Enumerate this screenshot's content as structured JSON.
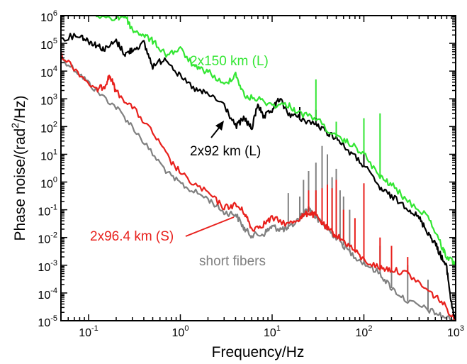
{
  "chart_data": {
    "type": "line",
    "xscale": "log",
    "yscale": "log",
    "xlim": [
      0.05,
      1000
    ],
    "ylim": [
      1e-05,
      1000000.0
    ],
    "grid": false,
    "xlabel": "Frequency/Hz",
    "ylabel_prefix": "Phase noise/(rad",
    "ylabel_sup": "2",
    "ylabel_suffix": "/Hz)",
    "x_ticks": [
      {
        "base": "10",
        "exp": "-1",
        "value": 0.1
      },
      {
        "base": "10",
        "exp": "0",
        "value": 1
      },
      {
        "base": "10",
        "exp": "1",
        "value": 10
      },
      {
        "base": "10",
        "exp": "2",
        "value": 100
      },
      {
        "base": "10",
        "exp": "3",
        "value": 1000
      }
    ],
    "y_ticks": [
      {
        "base": "10",
        "exp": "-5",
        "value": 1e-05
      },
      {
        "base": "10",
        "exp": "-4",
        "value": 0.0001
      },
      {
        "base": "10",
        "exp": "-3",
        "value": 0.001
      },
      {
        "base": "10",
        "exp": "-2",
        "value": 0.01
      },
      {
        "base": "10",
        "exp": "-1",
        "value": 0.1
      },
      {
        "base": "10",
        "exp": "0",
        "value": 1
      },
      {
        "base": "10",
        "exp": "1",
        "value": 10
      },
      {
        "base": "10",
        "exp": "2",
        "value": 100
      },
      {
        "base": "10",
        "exp": "3",
        "value": 1000
      },
      {
        "base": "10",
        "exp": "4",
        "value": 10000
      },
      {
        "base": "10",
        "exp": "5",
        "value": 100000
      },
      {
        "base": "10",
        "exp": "6",
        "value": 1000000
      }
    ],
    "series": [
      {
        "key": "short",
        "name": "short fibers",
        "color": "#808080",
        "points": [
          [
            0.05,
            30000
          ],
          [
            0.08,
            8000
          ],
          [
            0.12,
            2000
          ],
          [
            0.2,
            500
          ],
          [
            0.3,
            100
          ],
          [
            0.5,
            10
          ],
          [
            0.8,
            1.5
          ],
          [
            1.2,
            0.6
          ],
          [
            2,
            0.25
          ],
          [
            3,
            0.08
          ],
          [
            4,
            0.07
          ],
          [
            5,
            0.02
          ],
          [
            6,
            0.012
          ],
          [
            8,
            0.013
          ],
          [
            10,
            0.025
          ],
          [
            12,
            0.02
          ],
          [
            15,
            0.02
          ],
          [
            20,
            0.05
          ],
          [
            25,
            0.12
          ],
          [
            30,
            0.05
          ],
          [
            40,
            0.02
          ],
          [
            50,
            0.01
          ],
          [
            70,
            0.003
          ],
          [
            100,
            0.0012
          ],
          [
            150,
            0.0005
          ],
          [
            200,
            0.00015
          ],
          [
            300,
            5e-05
          ],
          [
            500,
            2.5e-05
          ],
          [
            700,
            1.5e-05
          ],
          [
            1000,
            1e-05
          ]
        ],
        "spikes": [
          [
            15,
            0.4
          ],
          [
            20,
            0.3
          ],
          [
            22,
            1.2
          ],
          [
            25,
            2.5
          ],
          [
            30,
            5
          ],
          [
            35,
            20
          ],
          [
            40,
            10
          ],
          [
            45,
            1.5
          ],
          [
            50,
            3
          ],
          [
            55,
            0.5
          ],
          [
            60,
            0.3
          ],
          [
            70,
            0.1
          ],
          [
            100,
            0.3
          ],
          [
            150,
            0.005
          ],
          [
            200,
            0.002
          ],
          [
            300,
            0.001
          ],
          [
            500,
            0.0003
          ]
        ]
      },
      {
        "key": "red",
        "name": "2x96.4 km (S)",
        "color": "#e8201c",
        "points": [
          [
            0.05,
            40000
          ],
          [
            0.08,
            8000
          ],
          [
            0.12,
            2000
          ],
          [
            0.15,
            3000
          ],
          [
            0.17,
            7000
          ],
          [
            0.2,
            1800
          ],
          [
            0.3,
            500
          ],
          [
            0.5,
            60
          ],
          [
            0.8,
            5
          ],
          [
            1.2,
            1.2
          ],
          [
            2,
            0.4
          ],
          [
            3,
            0.12
          ],
          [
            4,
            0.15
          ],
          [
            5,
            0.08
          ],
          [
            6,
            0.02
          ],
          [
            8,
            0.03
          ],
          [
            10,
            0.05
          ],
          [
            15,
            0.03
          ],
          [
            20,
            0.05
          ],
          [
            25,
            0.08
          ],
          [
            30,
            0.06
          ],
          [
            40,
            0.02
          ],
          [
            50,
            0.012
          ],
          [
            70,
            0.005
          ],
          [
            100,
            0.0015
          ],
          [
            150,
            0.0008
          ],
          [
            200,
            0.0007
          ],
          [
            300,
            0.0005
          ],
          [
            500,
            0.00012
          ],
          [
            700,
            5e-05
          ],
          [
            1000,
            1e-05
          ]
        ],
        "spikes": [
          [
            25,
            0.5
          ],
          [
            30,
            0.5
          ],
          [
            35,
            0.6
          ],
          [
            40,
            0.8
          ],
          [
            45,
            0.6
          ],
          [
            50,
            1.2
          ],
          [
            60,
            0.1
          ],
          [
            80,
            0.05
          ],
          [
            100,
            0.9
          ],
          [
            150,
            0.01
          ],
          [
            200,
            0.005
          ],
          [
            300,
            0.002
          ]
        ]
      },
      {
        "key": "black",
        "name": "2x92 km (L)",
        "color": "#000000",
        "points": [
          [
            0.05,
            150000
          ],
          [
            0.08,
            200000
          ],
          [
            0.1,
            120000
          ],
          [
            0.12,
            90000
          ],
          [
            0.15,
            60000
          ],
          [
            0.2,
            120000
          ],
          [
            0.25,
            40000
          ],
          [
            0.3,
            60000
          ],
          [
            0.4,
            100000
          ],
          [
            0.5,
            15000
          ],
          [
            0.7,
            30000
          ],
          [
            1,
            6000
          ],
          [
            1.5,
            2000
          ],
          [
            2,
            1500
          ],
          [
            3,
            600
          ],
          [
            4,
            100
          ],
          [
            5,
            200
          ],
          [
            6,
            80
          ],
          [
            7,
            700
          ],
          [
            8,
            200
          ],
          [
            10,
            400
          ],
          [
            12,
            1000
          ],
          [
            15,
            300
          ],
          [
            20,
            200
          ],
          [
            30,
            120
          ],
          [
            40,
            60
          ],
          [
            50,
            40
          ],
          [
            70,
            12
          ],
          [
            100,
            4
          ],
          [
            150,
            0.6
          ],
          [
            200,
            0.3
          ],
          [
            300,
            0.12
          ],
          [
            400,
            0.05
          ],
          [
            500,
            0.015
          ],
          [
            600,
            0.006
          ],
          [
            700,
            0.002
          ],
          [
            800,
            0.0008
          ],
          [
            900,
            4e-05
          ],
          [
            1000,
            1e-05
          ]
        ],
        "spikes": [
          [
            20,
            500
          ],
          [
            30,
            400
          ],
          [
            50,
            150
          ],
          [
            100,
            30
          ]
        ]
      },
      {
        "key": "green",
        "name": "2x150 km (L)",
        "color": "#33e633",
        "points": [
          [
            0.12,
            1000000
          ],
          [
            0.2,
            800000
          ],
          [
            0.25,
            1000000
          ],
          [
            0.3,
            300000
          ],
          [
            0.4,
            200000
          ],
          [
            0.5,
            120000
          ],
          [
            0.7,
            40000
          ],
          [
            1,
            60000
          ],
          [
            1.5,
            12000
          ],
          [
            2,
            10000
          ],
          [
            3,
            3000
          ],
          [
            4,
            8000
          ],
          [
            5,
            1200
          ],
          [
            7,
            1000
          ],
          [
            10,
            600
          ],
          [
            15,
            600
          ],
          [
            20,
            300
          ],
          [
            30,
            200
          ],
          [
            50,
            40
          ],
          [
            70,
            25
          ],
          [
            100,
            10
          ],
          [
            150,
            1.5
          ],
          [
            200,
            0.8
          ],
          [
            300,
            0.2
          ],
          [
            500,
            0.06
          ],
          [
            700,
            0.005
          ],
          [
            800,
            0.002
          ],
          [
            1000,
            0.001
          ]
        ],
        "spikes": [
          [
            30,
            5000
          ],
          [
            50,
            150
          ],
          [
            100,
            200
          ],
          [
            150,
            300
          ]
        ]
      }
    ],
    "annotations": [
      {
        "key": "green",
        "text": "2x150 km (L)",
        "color": "#33e633"
      },
      {
        "key": "black",
        "text": "2x92 km (L)",
        "color": "#000000"
      },
      {
        "key": "red",
        "text": "2x96.4 km (S)",
        "color": "#e8201c"
      },
      {
        "key": "short",
        "text": "short fibers",
        "color": "#808080"
      }
    ]
  }
}
